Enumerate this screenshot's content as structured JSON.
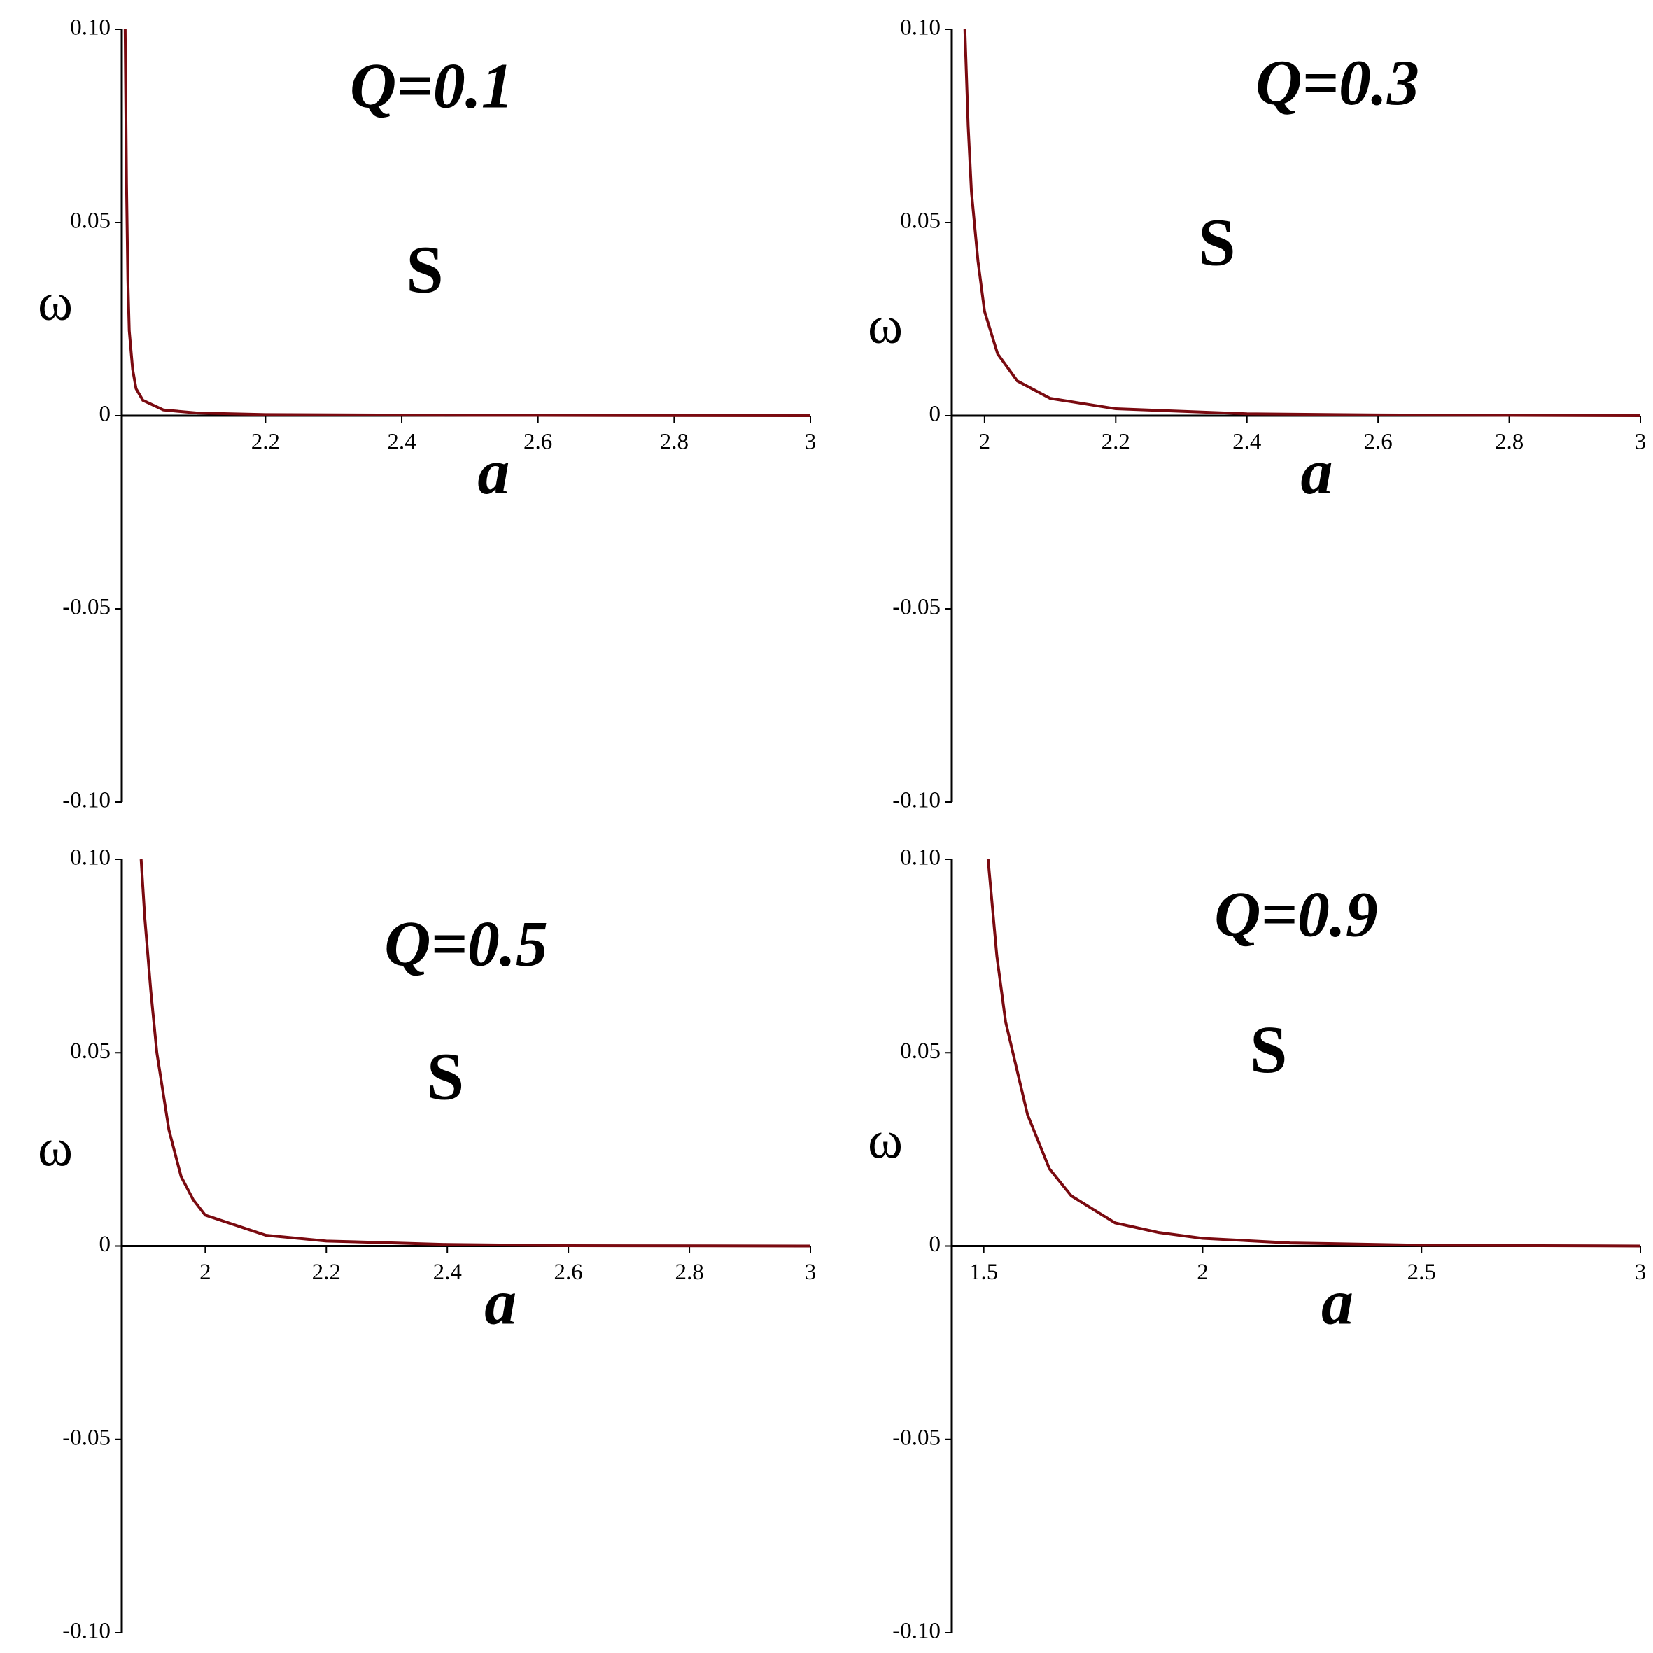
{
  "chart_data": [
    {
      "type": "line",
      "title": "Q=0.1",
      "annotation": "S",
      "ylabel": "ω",
      "xlabel": "a",
      "color": "#7a0a10",
      "x": [
        1.994,
        1.996,
        1.998,
        2.0,
        2.005,
        2.01,
        2.02,
        2.05,
        2.1,
        2.2,
        2.5,
        3.0
      ],
      "values": [
        0.1,
        0.06,
        0.035,
        0.022,
        0.012,
        0.007,
        0.004,
        0.0015,
        0.0007,
        0.0003,
        0.0001,
        0
      ],
      "xlim": [
        1.989,
        3
      ],
      "xticks": [
        2.2,
        2.4,
        2.6,
        2.8,
        3
      ],
      "ylim": [
        -0.1,
        0.1
      ],
      "yticks": [
        {
          "value": -0.1,
          "label": "-0.10"
        },
        -0.05,
        0,
        0.05,
        {
          "value": 0.1,
          "label": "0.10"
        }
      ]
    },
    {
      "type": "line",
      "title": "Q=0.3",
      "annotation": "S",
      "ylabel": "ω",
      "xlabel": "a",
      "color": "#7a0a10",
      "x": [
        1.97,
        1.975,
        1.98,
        1.99,
        2.0,
        2.02,
        2.05,
        2.1,
        2.2,
        2.4,
        2.6,
        3.0
      ],
      "values": [
        0.1,
        0.075,
        0.058,
        0.04,
        0.027,
        0.016,
        0.009,
        0.0045,
        0.0018,
        0.0005,
        0.0002,
        0
      ],
      "xlim": [
        1.95,
        3
      ],
      "xticks": [
        2,
        2.2,
        2.4,
        2.6,
        2.8,
        3
      ],
      "ylim": [
        -0.1,
        0.1
      ],
      "yticks": [
        {
          "value": -0.1,
          "label": "-0.10"
        },
        -0.05,
        0,
        0.05,
        {
          "value": 0.1,
          "label": "0.10"
        }
      ]
    },
    {
      "type": "line",
      "title": "Q=0.5",
      "annotation": "S",
      "ylabel": "ω",
      "xlabel": "a",
      "color": "#7a0a10",
      "x": [
        1.894,
        1.9,
        1.91,
        1.92,
        1.94,
        1.96,
        1.98,
        2.0,
        2.1,
        2.2,
        2.4,
        2.6,
        3.0
      ],
      "values": [
        0.1,
        0.085,
        0.066,
        0.05,
        0.03,
        0.018,
        0.012,
        0.008,
        0.0028,
        0.0013,
        0.0004,
        0.0001,
        0
      ],
      "xlim": [
        1.862,
        3
      ],
      "xticks": [
        2,
        2.2,
        2.4,
        2.6,
        2.8,
        3
      ],
      "ylim": [
        -0.1,
        0.1
      ],
      "yticks": [
        {
          "value": -0.1,
          "label": "-0.10"
        },
        -0.05,
        0,
        0.05,
        {
          "value": 0.1,
          "label": "0.10"
        }
      ]
    },
    {
      "type": "line",
      "title": "Q=0.9",
      "annotation": "S",
      "ylabel": "ω",
      "xlabel": "a",
      "color": "#7a0a10",
      "x": [
        1.51,
        1.53,
        1.55,
        1.6,
        1.65,
        1.7,
        1.8,
        1.9,
        2.0,
        2.2,
        2.5,
        3.0
      ],
      "values": [
        0.1,
        0.075,
        0.058,
        0.034,
        0.02,
        0.013,
        0.006,
        0.0035,
        0.002,
        0.0008,
        0.0002,
        0
      ],
      "xlim": [
        1.427,
        3
      ],
      "xticks": [
        1.5,
        2,
        2.5,
        3
      ],
      "ylim": [
        -0.1,
        0.1
      ],
      "yticks": [
        {
          "value": -0.1,
          "label": "-0.10"
        },
        -0.05,
        0,
        0.05,
        {
          "value": 0.1,
          "label": "0.10"
        }
      ]
    }
  ]
}
